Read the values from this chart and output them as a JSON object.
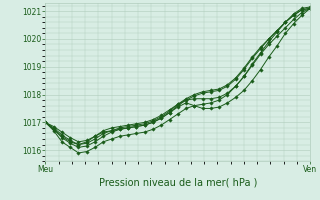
{
  "title": "",
  "xlabel": "Pression niveau de la mer( hPa )",
  "ylabel": "",
  "ylim": [
    1015.6,
    1021.3
  ],
  "yticks": [
    1016,
    1017,
    1018,
    1019,
    1020,
    1021
  ],
  "x_labels": [
    "Meu",
    "Ven"
  ],
  "bg_color": "#d8ede4",
  "grid_color": "#b0ccbc",
  "line_color": "#1a5c1a",
  "marker_color": "#1a5c1a",
  "series": [
    [
      1017.0,
      1016.75,
      1016.5,
      1016.3,
      1016.2,
      1016.3,
      1016.5,
      1016.65,
      1016.7,
      1016.75,
      1016.8,
      1016.85,
      1016.9,
      1017.0,
      1017.15,
      1017.35,
      1017.55,
      1017.7,
      1017.6,
      1017.5,
      1017.5,
      1017.55,
      1017.7,
      1017.9,
      1018.15,
      1018.5,
      1018.9,
      1019.35,
      1019.75,
      1020.2,
      1020.55,
      1020.85,
      1021.1
    ],
    [
      1017.0,
      1016.7,
      1016.3,
      1016.1,
      1015.9,
      1015.95,
      1016.1,
      1016.3,
      1016.4,
      1016.5,
      1016.55,
      1016.6,
      1016.65,
      1016.75,
      1016.9,
      1017.1,
      1017.3,
      1017.5,
      1017.6,
      1017.65,
      1017.7,
      1017.8,
      1018.0,
      1018.3,
      1018.65,
      1019.1,
      1019.5,
      1019.9,
      1020.25,
      1020.6,
      1020.9,
      1021.1,
      1021.15
    ],
    [
      1017.0,
      1016.8,
      1016.55,
      1016.35,
      1016.2,
      1016.25,
      1016.4,
      1016.6,
      1016.7,
      1016.8,
      1016.85,
      1016.9,
      1016.95,
      1017.05,
      1017.2,
      1017.4,
      1017.65,
      1017.85,
      1018.0,
      1018.1,
      1018.15,
      1018.2,
      1018.35,
      1018.6,
      1018.95,
      1019.35,
      1019.7,
      1020.0,
      1020.3,
      1020.6,
      1020.85,
      1021.05,
      1021.1
    ],
    [
      1017.0,
      1016.85,
      1016.65,
      1016.45,
      1016.3,
      1016.35,
      1016.5,
      1016.7,
      1016.8,
      1016.85,
      1016.9,
      1016.95,
      1017.0,
      1017.1,
      1017.25,
      1017.45,
      1017.65,
      1017.8,
      1017.85,
      1017.85,
      1017.85,
      1017.9,
      1018.05,
      1018.3,
      1018.65,
      1019.05,
      1019.45,
      1019.8,
      1020.1,
      1020.4,
      1020.7,
      1020.95,
      1021.1
    ],
    [
      1017.0,
      1016.75,
      1016.45,
      1016.25,
      1016.1,
      1016.15,
      1016.3,
      1016.5,
      1016.65,
      1016.75,
      1016.8,
      1016.85,
      1016.9,
      1017.0,
      1017.15,
      1017.35,
      1017.6,
      1017.8,
      1017.95,
      1018.05,
      1018.1,
      1018.15,
      1018.3,
      1018.55,
      1018.9,
      1019.3,
      1019.65,
      1020.0,
      1020.3,
      1020.6,
      1020.85,
      1021.05,
      1021.1
    ]
  ]
}
